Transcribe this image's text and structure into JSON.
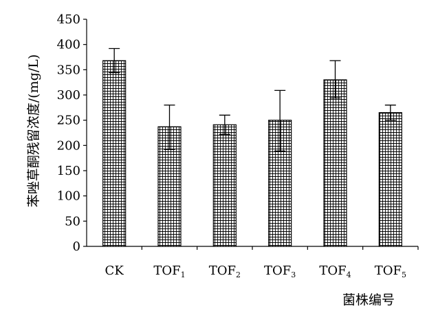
{
  "chart_data": {
    "type": "bar",
    "ylabel": "苯唑草酮残留浓度/(mg/L)",
    "xlabel": "菌株编号",
    "ylim": [
      0,
      450
    ],
    "yticks": [
      0,
      50,
      100,
      150,
      200,
      250,
      300,
      350,
      400,
      450
    ],
    "categories": [
      {
        "base": "CK",
        "sub": ""
      },
      {
        "base": "TOF",
        "sub": "1"
      },
      {
        "base": "TOF",
        "sub": "2"
      },
      {
        "base": "TOF",
        "sub": "3"
      },
      {
        "base": "TOF",
        "sub": "4"
      },
      {
        "base": "TOF",
        "sub": "5"
      }
    ],
    "values": [
      368,
      237,
      241,
      250,
      330,
      265
    ],
    "error_upper": [
      392,
      280,
      260,
      309,
      368,
      280
    ],
    "error_lower": [
      344,
      192,
      222,
      189,
      294,
      250
    ],
    "bar_pattern": "grid-hatch",
    "grid": false,
    "legend": "none"
  }
}
